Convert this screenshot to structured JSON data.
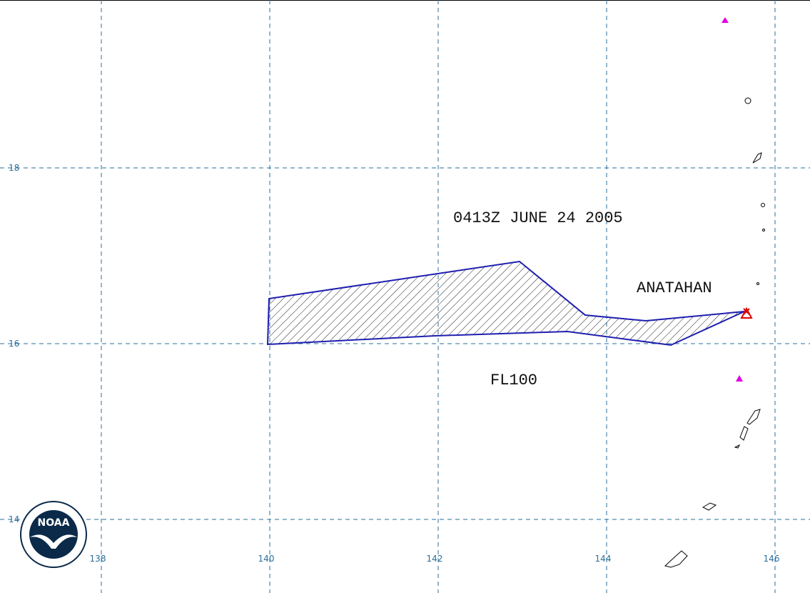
{
  "map": {
    "lon_labels": [
      "138",
      "140",
      "142",
      "144",
      "146"
    ],
    "lat_labels": [
      "18",
      "16",
      "14"
    ],
    "annotations": {
      "time": "0413Z JUNE 24 2005",
      "volcano": "ANATAHAN",
      "level": "FL100"
    },
    "logo": "NOAA"
  }
}
